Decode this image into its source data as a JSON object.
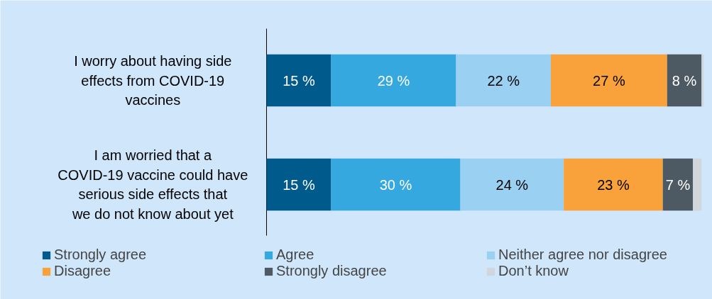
{
  "chart_data": {
    "type": "bar",
    "orientation": "horizontal",
    "stacked": true,
    "legend": "bottom",
    "categories": [
      "I worry about having side effects from COVID-19 vaccines",
      "I am worried that a COVID-19 vaccine could have serious side effects that we do not know about yet"
    ],
    "series": [
      {
        "name": "Strongly agree",
        "color": "#005a8c",
        "values": [
          15,
          15
        ],
        "value_labels": [
          "15 %",
          "15 %"
        ]
      },
      {
        "name": "Agree",
        "color": "#35a8e0",
        "values": [
          29,
          30
        ],
        "value_labels": [
          "29 %",
          "30 %"
        ]
      },
      {
        "name": "Neither agree nor disagree",
        "color": "#9ad0f2",
        "values": [
          22,
          24
        ],
        "value_labels": [
          "22 %",
          "24 %"
        ]
      },
      {
        "name": "Disagree",
        "color": "#f9a13a",
        "values": [
          27,
          23
        ],
        "value_labels": [
          "27 %",
          "23 %"
        ]
      },
      {
        "name": "Strongly disagree",
        "color": "#4d5a63",
        "values": [
          8,
          7
        ],
        "value_labels": [
          "8 %",
          "7 %"
        ]
      },
      {
        "name": "Don’t know",
        "color": "#d0d6db",
        "values": [
          0.5,
          2
        ],
        "value_labels": [
          null,
          null
        ]
      }
    ]
  }
}
